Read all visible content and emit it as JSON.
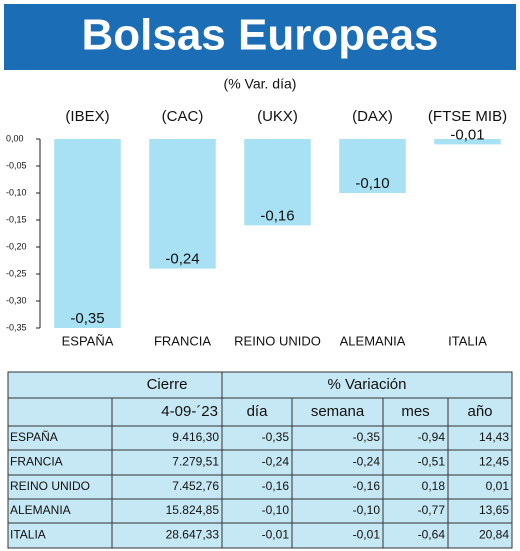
{
  "chart_data": {
    "type": "bar",
    "title": "Bolsas Europeas",
    "subtitle": "(% Var. día)",
    "indices": [
      "(IBEX)",
      "(CAC)",
      "(UKX)",
      "(DAX)",
      "(FTSE MIB)"
    ],
    "categories": [
      "ESPAÑA",
      "FRANCIA",
      "REINO UNIDO",
      "ALEMANIA",
      "ITALIA"
    ],
    "values": [
      -0.35,
      -0.24,
      -0.16,
      -0.1,
      -0.01
    ],
    "value_labels": [
      "-0,35",
      "-0,24",
      "-0,16",
      "-0,10",
      "-0,01"
    ],
    "color": "#a8e1f3",
    "ylim": [
      -0.35,
      0
    ],
    "yticks": [
      {
        "value": 0,
        "label": "0,00"
      },
      {
        "value": -0.05,
        "label": "-0,05"
      },
      {
        "value": -0.1,
        "label": "-0,10"
      },
      {
        "value": -0.15,
        "label": "-0,15"
      },
      {
        "value": -0.2,
        "label": "-0,20"
      },
      {
        "value": -0.25,
        "label": "-0,25"
      },
      {
        "value": -0.3,
        "label": "-0,30"
      },
      {
        "value": -0.35,
        "label": "-0,35"
      }
    ],
    "grid": false
  },
  "table": {
    "header": [
      "Cierre",
      "% Variación"
    ],
    "subheader": [
      "4-09-´23",
      "día",
      "semana",
      "mes",
      "año"
    ],
    "rows": [
      [
        "ESPAÑA",
        "9.416,30",
        "-0,35",
        "-0,35",
        "-0,94",
        "14,43"
      ],
      [
        "FRANCIA",
        "7.279,51",
        "-0,24",
        "-0,24",
        "-0,51",
        "12,45"
      ],
      [
        "REINO UNIDO",
        "7.452,76",
        "-0,16",
        "-0,16",
        "0,18",
        "0,01"
      ],
      [
        "ALEMANIA",
        "15.824,85",
        "-0,10",
        "-0,10",
        "-0,77",
        "13,65"
      ],
      [
        "ITALIA",
        "28.647,33",
        "-0,01",
        "-0,01",
        "-0,64",
        "20,84"
      ]
    ]
  }
}
